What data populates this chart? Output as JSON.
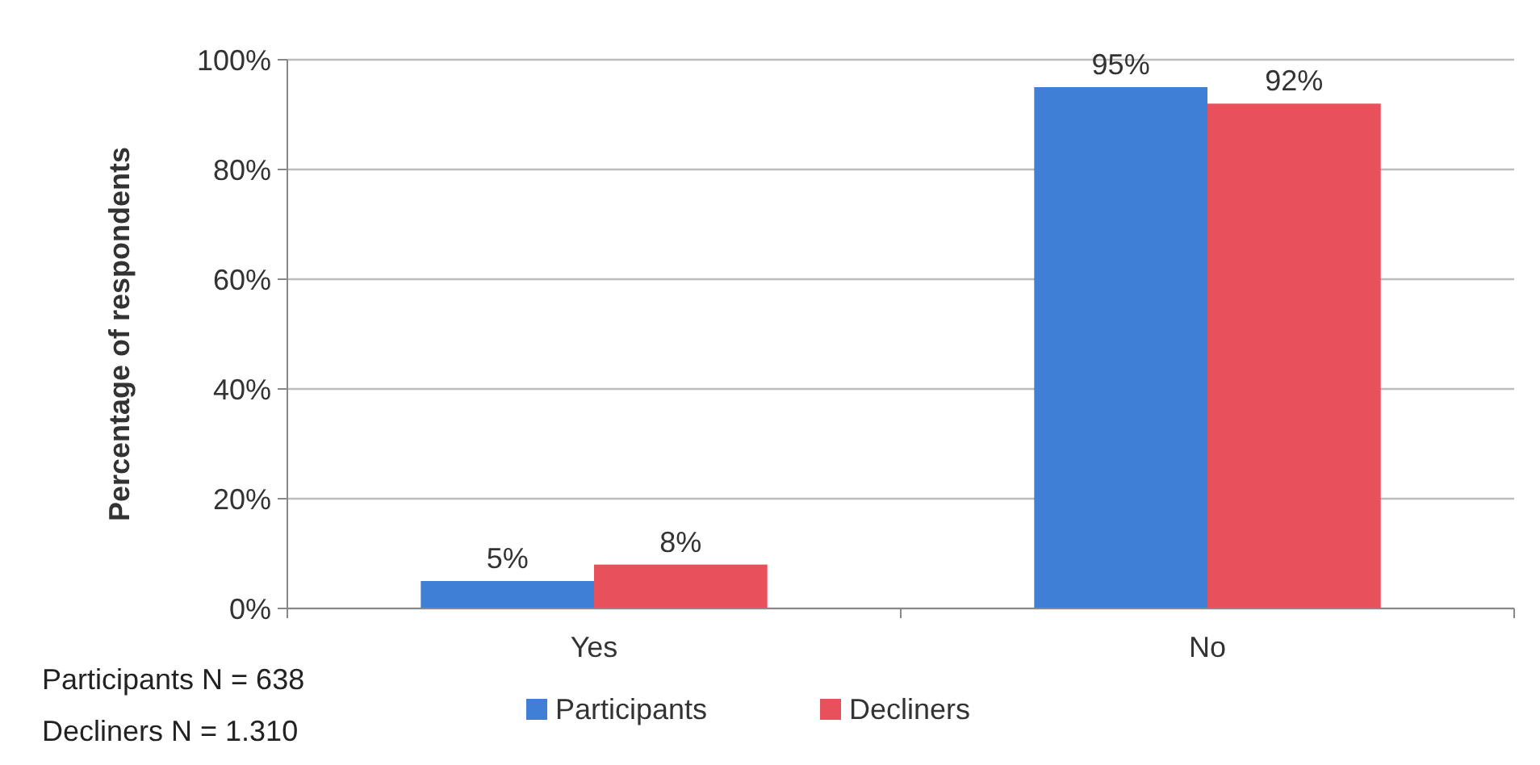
{
  "chart_data": {
    "type": "bar",
    "ylabel": "Percentage of respondents",
    "categories": [
      "Yes",
      "No"
    ],
    "series": [
      {
        "name": "Participants",
        "color": "#3f7fd6",
        "values": [
          5,
          95
        ],
        "value_labels": [
          "5%",
          "95%"
        ]
      },
      {
        "name": "Decliners",
        "color": "#e8505b",
        "values": [
          8,
          92
        ],
        "value_labels": [
          "8%",
          "92%"
        ]
      }
    ],
    "ylim": [
      0,
      100
    ],
    "yticks": [
      {
        "value": 0,
        "label": "0%"
      },
      {
        "value": 20,
        "label": "20%"
      },
      {
        "value": 40,
        "label": "40%"
      },
      {
        "value": 60,
        "label": "60%"
      },
      {
        "value": 80,
        "label": "80%"
      },
      {
        "value": 100,
        "label": "100%"
      }
    ],
    "grid": "y",
    "legend": "bottom",
    "annotations": [
      "Participants N = 638",
      "Decliners N = 1.310"
    ]
  }
}
